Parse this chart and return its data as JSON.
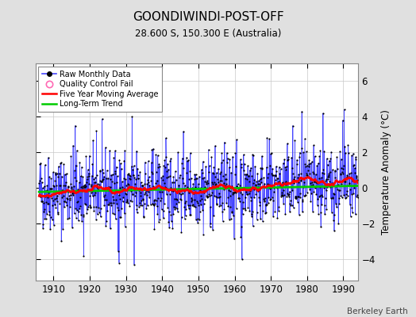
{
  "title": "GOONDIWINDI-POST-OFF",
  "subtitle": "28.600 S, 150.300 E (Australia)",
  "ylabel": "Temperature Anomaly (°C)",
  "attribution": "Berkeley Earth",
  "year_start": 1906,
  "year_end": 1993,
  "ylim": [
    -5.2,
    7.0
  ],
  "yticks": [
    -4,
    -2,
    0,
    2,
    4,
    6
  ],
  "xticks": [
    1910,
    1920,
    1930,
    1940,
    1950,
    1960,
    1970,
    1980,
    1990
  ],
  "xlim": [
    1905,
    1994
  ],
  "bg_color": "#e0e0e0",
  "plot_bg_color": "#ffffff",
  "raw_color": "#4444ff",
  "dot_color": "#000000",
  "ma_color": "#ff0000",
  "trend_color": "#00cc00",
  "seed": 42
}
